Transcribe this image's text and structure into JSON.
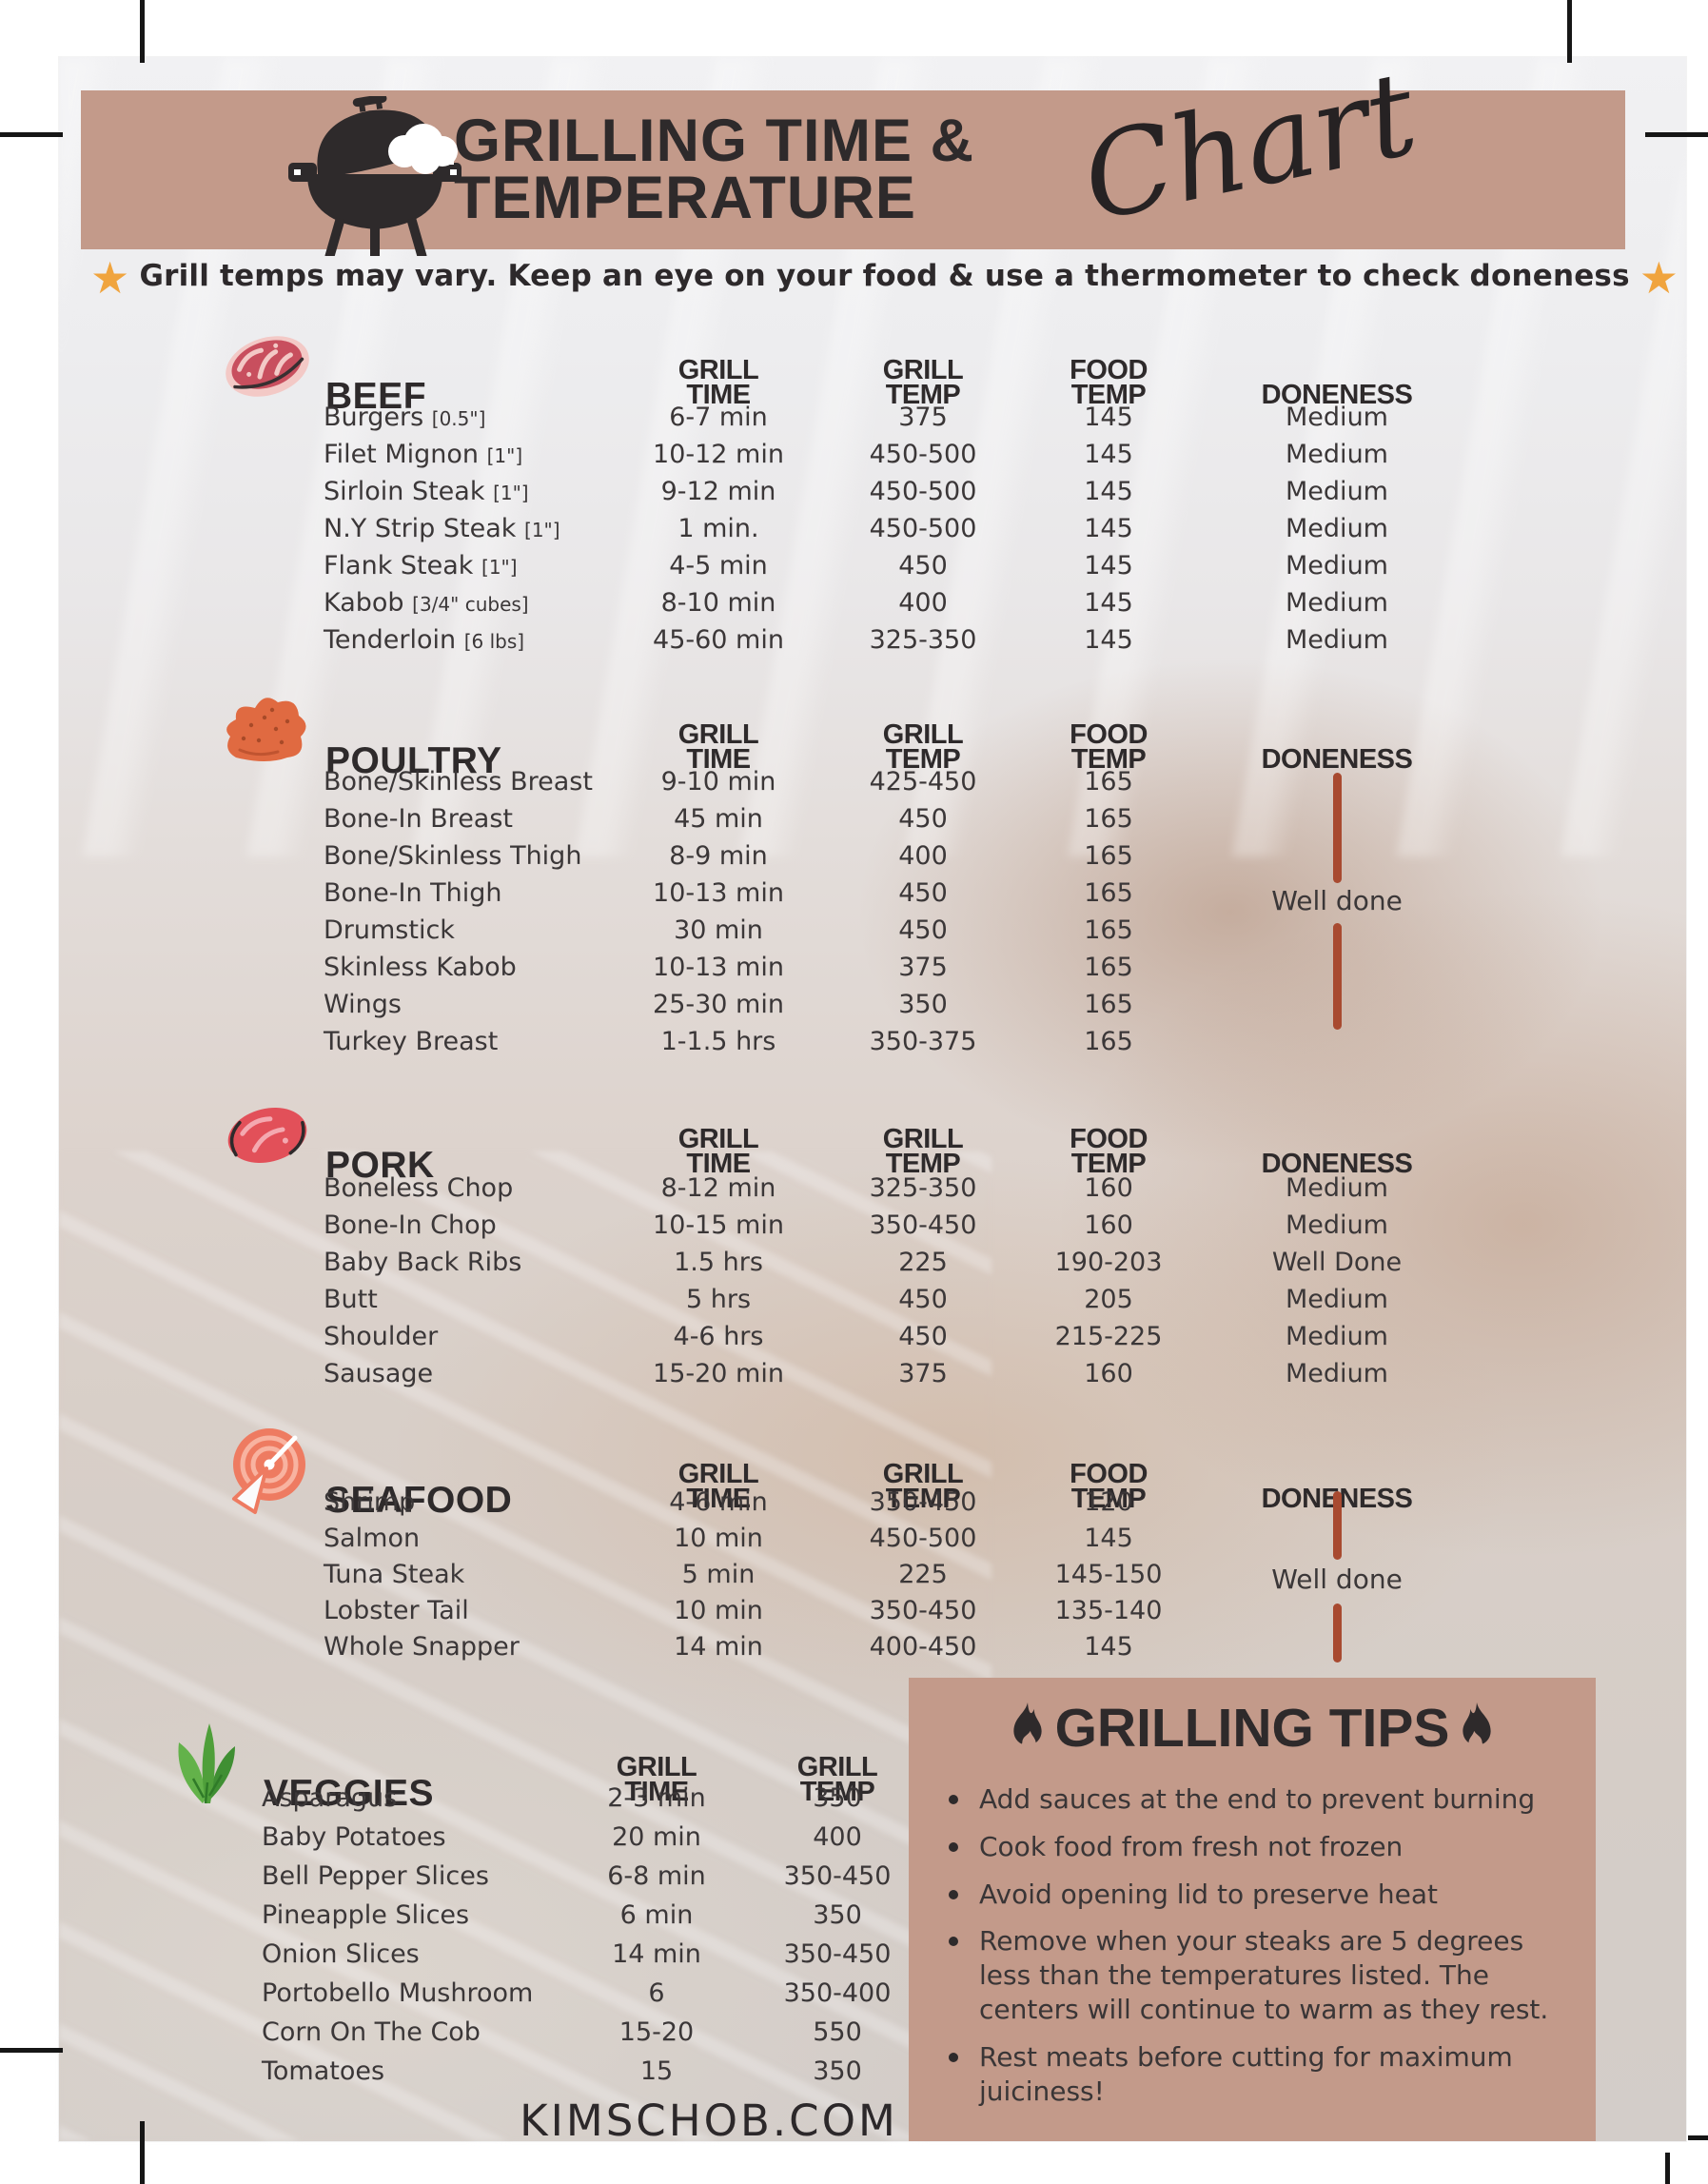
{
  "theme": {
    "band_bg": "#c39a8a",
    "ink": "#2e2a2b",
    "body_text": "#3b3738",
    "doneness_line": "#a84a30",
    "star_gold": "#f0a43e"
  },
  "header": {
    "title_line1": "GRILLING TIME &",
    "title_line2": "TEMPERATURE",
    "script_word": "Chart",
    "note": "Grill temps may vary. Keep an eye on your food & use a thermometer to check doneness"
  },
  "sections": [
    {
      "id": "beef",
      "title": "BEEF",
      "icon": "steak-icon",
      "columns": [
        "GRILL|TIME",
        "GRILL|TEMP",
        "FOOD|TEMP",
        "DONENESS"
      ],
      "rows": [
        {
          "note": "[0.5\"]",
          "cells": [
            "Burgers",
            "6-7 min",
            "375",
            "145",
            "Medium"
          ]
        },
        {
          "note": "[1\"]",
          "cells": [
            "Filet Mignon",
            "10-12 min",
            "450-500",
            "145",
            "Medium"
          ]
        },
        {
          "note": "[1\"]",
          "cells": [
            "Sirloin Steak",
            "9-12 min",
            "450-500",
            "145",
            "Medium"
          ]
        },
        {
          "note": "[1\"]",
          "cells": [
            "N.Y Strip Steak",
            "1 min.",
            "450-500",
            "145",
            "Medium"
          ]
        },
        {
          "note": "[1\"]",
          "cells": [
            "Flank Steak",
            "4-5 min",
            "450",
            "145",
            "Medium"
          ]
        },
        {
          "note": "[3/4\" cubes]",
          "cells": [
            "Kabob",
            "8-10 min",
            "400",
            "145",
            "Medium"
          ]
        },
        {
          "note": "[6 lbs]",
          "cells": [
            "Tenderloin",
            "45-60 min",
            "325-350",
            "145",
            "Medium"
          ]
        }
      ]
    },
    {
      "id": "poultry",
      "title": "POULTRY",
      "icon": "poultry-icon",
      "columns": [
        "GRILL|TIME",
        "GRILL|TEMP",
        "FOOD|TEMP",
        "DONENESS"
      ],
      "doneness_overlay": "Well done",
      "rows": [
        {
          "cells": [
            "Bone/Skinless Breast",
            "9-10 min",
            "425-450",
            "165",
            ""
          ]
        },
        {
          "cells": [
            "Bone-In Breast",
            "45 min",
            "450",
            "165",
            ""
          ]
        },
        {
          "cells": [
            "Bone/Skinless Thigh",
            "8-9 min",
            "400",
            "165",
            ""
          ]
        },
        {
          "cells": [
            "Bone-In Thigh",
            "10-13 min",
            "450",
            "165",
            ""
          ]
        },
        {
          "cells": [
            "Drumstick",
            "30 min",
            "450",
            "165",
            ""
          ]
        },
        {
          "cells": [
            "Skinless Kabob",
            "10-13 min",
            "375",
            "165",
            ""
          ]
        },
        {
          "cells": [
            "Wings",
            "25-30 min",
            "350",
            "165",
            ""
          ]
        },
        {
          "cells": [
            "Turkey Breast",
            "1-1.5 hrs",
            "350-375",
            "165",
            ""
          ]
        }
      ]
    },
    {
      "id": "pork",
      "title": "PORK",
      "icon": "pork-icon",
      "columns": [
        "GRILL|TIME",
        "GRILL|TEMP",
        "FOOD|TEMP",
        "DONENESS"
      ],
      "rows": [
        {
          "cells": [
            "Boneless Chop",
            "8-12 min",
            "325-350",
            "160",
            "Medium"
          ]
        },
        {
          "cells": [
            "Bone-In Chop",
            "10-15 min",
            "350-450",
            "160",
            "Medium"
          ]
        },
        {
          "cells": [
            "Baby Back Ribs",
            "1.5 hrs",
            "225",
            "190-203",
            "Well Done"
          ]
        },
        {
          "cells": [
            "Butt",
            "5 hrs",
            "450",
            "205",
            "Medium"
          ]
        },
        {
          "cells": [
            "Shoulder",
            "4-6 hrs",
            "450",
            "215-225",
            "Medium"
          ]
        },
        {
          "cells": [
            "Sausage",
            "15-20 min",
            "375",
            "160",
            "Medium"
          ]
        }
      ]
    },
    {
      "id": "seafood",
      "title": "SEAFOOD",
      "icon": "seafood-icon",
      "columns": [
        "GRILL|TIME",
        "GRILL|TEMP",
        "FOOD|TEMP",
        "DONENESS"
      ],
      "doneness_overlay": "Well done",
      "rows": [
        {
          "cells": [
            "Shrimp",
            "4-6 min",
            "350-450",
            "120",
            ""
          ]
        },
        {
          "cells": [
            "Salmon",
            "10 min",
            "450-500",
            "145",
            ""
          ]
        },
        {
          "cells": [
            "Tuna Steak",
            "5 min",
            "225",
            "145-150",
            ""
          ]
        },
        {
          "cells": [
            "Lobster Tail",
            "10 min",
            "350-450",
            "135-140",
            ""
          ]
        },
        {
          "cells": [
            "Whole Snapper",
            "14 min",
            "400-450",
            "145",
            ""
          ]
        }
      ]
    },
    {
      "id": "veggies",
      "title": "VEGGIES",
      "icon": "veggies-icon",
      "columns": [
        "GRILL|TIME",
        "GRILL|TEMP"
      ],
      "rows": [
        {
          "cells": [
            "Asparagus",
            "2-3 min",
            "350"
          ]
        },
        {
          "cells": [
            "Baby Potatoes",
            "20 min",
            "400"
          ]
        },
        {
          "cells": [
            "Bell Pepper Slices",
            "6-8 min",
            "350-450"
          ]
        },
        {
          "cells": [
            "Pineapple Slices",
            "6 min",
            "350"
          ]
        },
        {
          "cells": [
            "Onion Slices",
            "14 min",
            "350-450"
          ]
        },
        {
          "cells": [
            "Portobello Mushroom",
            "6",
            "350-400"
          ]
        },
        {
          "cells": [
            "Corn On The Cob",
            "15-20",
            "550"
          ]
        },
        {
          "cells": [
            "Tomatoes",
            "15",
            "350"
          ]
        }
      ]
    }
  ],
  "tips": {
    "title": "GRILLING TIPS",
    "items": [
      "Add sauces at the end to prevent burning",
      "Cook food from fresh not frozen",
      "Avoid opening lid  to preserve heat",
      "Remove when your steaks are 5 degrees less than the temperatures listed. The centers will continue to warm as they rest.",
      "Rest meats before cutting for maximum juiciness!"
    ]
  },
  "footer": {
    "site": "KIMSCHOB.COM"
  }
}
